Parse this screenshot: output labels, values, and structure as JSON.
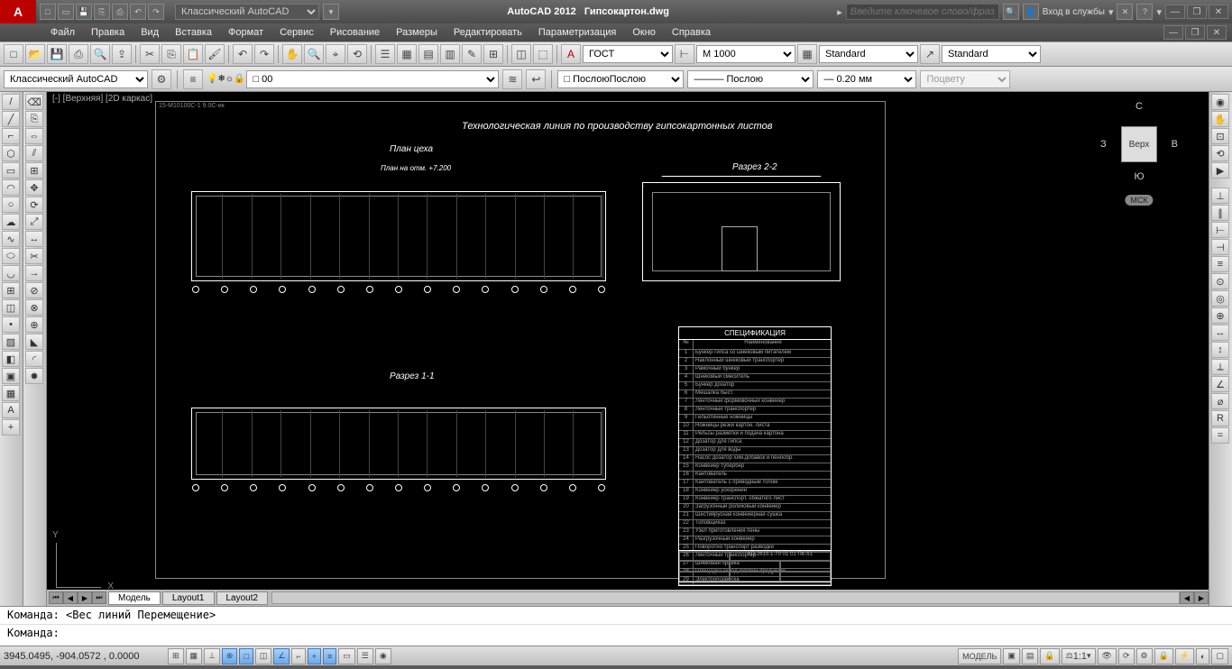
{
  "title": {
    "app": "AutoCAD 2012",
    "file": "Гипсокартон.dwg"
  },
  "workspace_selector": "Классический AutoCAD",
  "search_placeholder": "Введите ключевое слово/фразу",
  "login_label": "Вход в службы",
  "menus": [
    "Файл",
    "Правка",
    "Вид",
    "Вставка",
    "Формат",
    "Сервис",
    "Рисование",
    "Размеры",
    "Редактировать",
    "Параметризация",
    "Окно",
    "Справка"
  ],
  "toolbar2": {
    "workspace": "Классический AutoCAD",
    "layer": "0",
    "textstyle": "ГОСТ",
    "dimstyle": "M 1000",
    "tablestyle": "Standard",
    "mleader": "Standard",
    "color": "Послою",
    "linetype": "Послою",
    "lineweight": "0.20 мм",
    "plotstyle": "Поцвету"
  },
  "viewport_label": "[-] [Верхняя] [2D каркас]",
  "viewcube": {
    "face": "Верх",
    "n": "С",
    "s": "Ю",
    "e": "В",
    "w": "З",
    "wcs": "МСК"
  },
  "ucs": {
    "x": "X",
    "y": "Y"
  },
  "drawing": {
    "paper_code": "15-М10100С-1 9.0С-ик",
    "main_title": "Технологическая линия по производству гипсокартонных листов",
    "plan_title": "План цеха",
    "plan_mark": "План на отм. +7.200",
    "section22": "Разрез 2-2",
    "section11": "Разрез 1-1",
    "spec_title": "СПЕЦИФИКАЦИЯ",
    "spec_header": "Наименование",
    "spec_items": [
      "Бункер гипса со шнековым питателем",
      "Наклонный шнековый транспортер",
      "Рамочный бункер",
      "Шнековый смеситель",
      "Бункер дозатор",
      "Мешалка быст.",
      "Ленточный формовочный конвейер",
      "Ленточный транспортер",
      "Гильотинные ножницы",
      "Ножницы резки картон. листа",
      "Рельсы разметки и подача картона",
      "Дозатор для гипса",
      "Дозатор для воды",
      "Насос дозатор хим.добавок и пенообр.",
      "Конвейер тубербер",
      "Кантователь",
      "Кантователь с приводным топом",
      "Конвейер ускорений",
      "Конвейер транспорт. обжатого лист",
      "Загрузочный роликовый конвейер",
      "Шестиярусная конвейерная сушка",
      "Топовщиказ",
      "Узел приготовления пены",
      "Разгрузочный конвейер",
      "Поворотно транспорт разводки",
      "Ленточный транспортер",
      "Шнековая правка",
      "Площадка склад готовой продукции",
      "Электроподвеска"
    ],
    "titleblock_code": "КП-2615.1-70 01 01 ПК-51"
  },
  "tabs": {
    "model": "Модель",
    "layout1": "Layout1",
    "layout2": "Layout2"
  },
  "command": {
    "history": "Команда:  <Вес линий Перемещение>",
    "prompt": "Команда:"
  },
  "status": {
    "coords": "3945.0495, -904.0572 , 0.0000",
    "model_btn": "МОДЕЛЬ",
    "scale": "1:1"
  }
}
